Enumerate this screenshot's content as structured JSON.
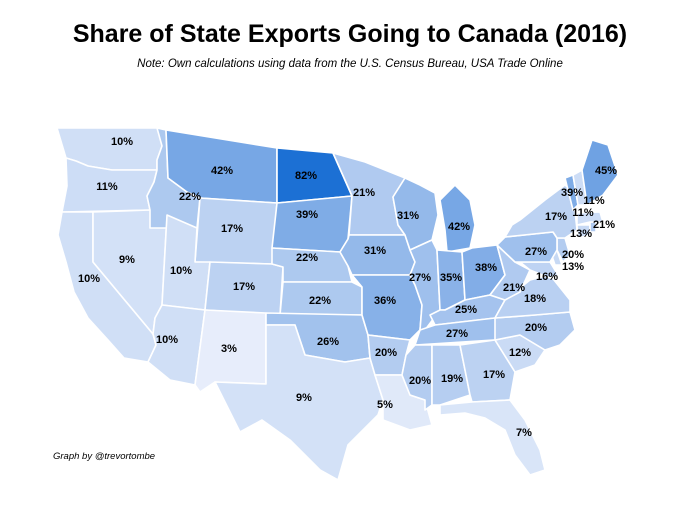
{
  "title": "Share of State Exports Going to Canada (2016)",
  "subtitle": "Note: Own calculations using data from the U.S. Census Bureau, USA Trade Online",
  "credit": "Graph by @trevortombe",
  "colors": {
    "min": "#f2f4fd",
    "max": "#1f6fd3",
    "highlight": "#1c70d4",
    "border": "#ffffff"
  },
  "chart_data": {
    "type": "choropleth",
    "unit": "%",
    "states": [
      {
        "id": "WA",
        "value": 10,
        "label": "10%"
      },
      {
        "id": "OR",
        "value": 11,
        "label": "11%"
      },
      {
        "id": "CA",
        "value": 10,
        "label": "10%"
      },
      {
        "id": "NV",
        "value": 9,
        "label": "9%"
      },
      {
        "id": "ID",
        "value": 22,
        "label": "22%"
      },
      {
        "id": "MT",
        "value": 42,
        "label": "42%"
      },
      {
        "id": "WY",
        "value": 17,
        "label": "17%"
      },
      {
        "id": "UT",
        "value": 10,
        "label": "10%"
      },
      {
        "id": "AZ",
        "value": 10,
        "label": "10%"
      },
      {
        "id": "CO",
        "value": 17,
        "label": "17%"
      },
      {
        "id": "NM",
        "value": 3,
        "label": "3%"
      },
      {
        "id": "ND",
        "value": 82,
        "label": "82%"
      },
      {
        "id": "SD",
        "value": 39,
        "label": "39%"
      },
      {
        "id": "NE",
        "value": 22,
        "label": "22%"
      },
      {
        "id": "KS",
        "value": 22,
        "label": "22%"
      },
      {
        "id": "OK",
        "value": 26,
        "label": "26%"
      },
      {
        "id": "TX",
        "value": 9,
        "label": "9%"
      },
      {
        "id": "MN",
        "value": 21,
        "label": "21%"
      },
      {
        "id": "IA",
        "value": 31,
        "label": "31%"
      },
      {
        "id": "MO",
        "value": 36,
        "label": "36%"
      },
      {
        "id": "AR",
        "value": 20,
        "label": "20%"
      },
      {
        "id": "LA",
        "value": 5,
        "label": "5%"
      },
      {
        "id": "WI",
        "value": 31,
        "label": "31%"
      },
      {
        "id": "IL",
        "value": 27,
        "label": "27%"
      },
      {
        "id": "MI",
        "value": 42,
        "label": "42%"
      },
      {
        "id": "IN",
        "value": 35,
        "label": "35%"
      },
      {
        "id": "OH",
        "value": 38,
        "label": "38%"
      },
      {
        "id": "KY",
        "value": 25,
        "label": "25%"
      },
      {
        "id": "TN",
        "value": 27,
        "label": "27%"
      },
      {
        "id": "MS",
        "value": 20,
        "label": "20%"
      },
      {
        "id": "AL",
        "value": 19,
        "label": "19%"
      },
      {
        "id": "GA",
        "value": 17,
        "label": "17%"
      },
      {
        "id": "FL",
        "value": 7,
        "label": "7%"
      },
      {
        "id": "SC",
        "value": 12,
        "label": "12%"
      },
      {
        "id": "NC",
        "value": 20,
        "label": "20%"
      },
      {
        "id": "VA",
        "value": 18,
        "label": "18%"
      },
      {
        "id": "WV",
        "value": 21,
        "label": "21%"
      },
      {
        "id": "MD",
        "value": 16,
        "label": "16%"
      },
      {
        "id": "DE",
        "value": 13,
        "label": "13%"
      },
      {
        "id": "NJ",
        "value": 20,
        "label": "20%"
      },
      {
        "id": "PA",
        "value": 27,
        "label": "27%"
      },
      {
        "id": "NY",
        "value": 17,
        "label": "17%"
      },
      {
        "id": "CT",
        "value": 13,
        "label": "13%"
      },
      {
        "id": "RI",
        "value": 21,
        "label": "21%"
      },
      {
        "id": "MA",
        "value": 11,
        "label": "11%"
      },
      {
        "id": "VT",
        "value": 39,
        "label": "39%"
      },
      {
        "id": "NH",
        "value": 11,
        "label": "11%"
      },
      {
        "id": "ME",
        "value": 45,
        "label": "45%"
      }
    ]
  }
}
